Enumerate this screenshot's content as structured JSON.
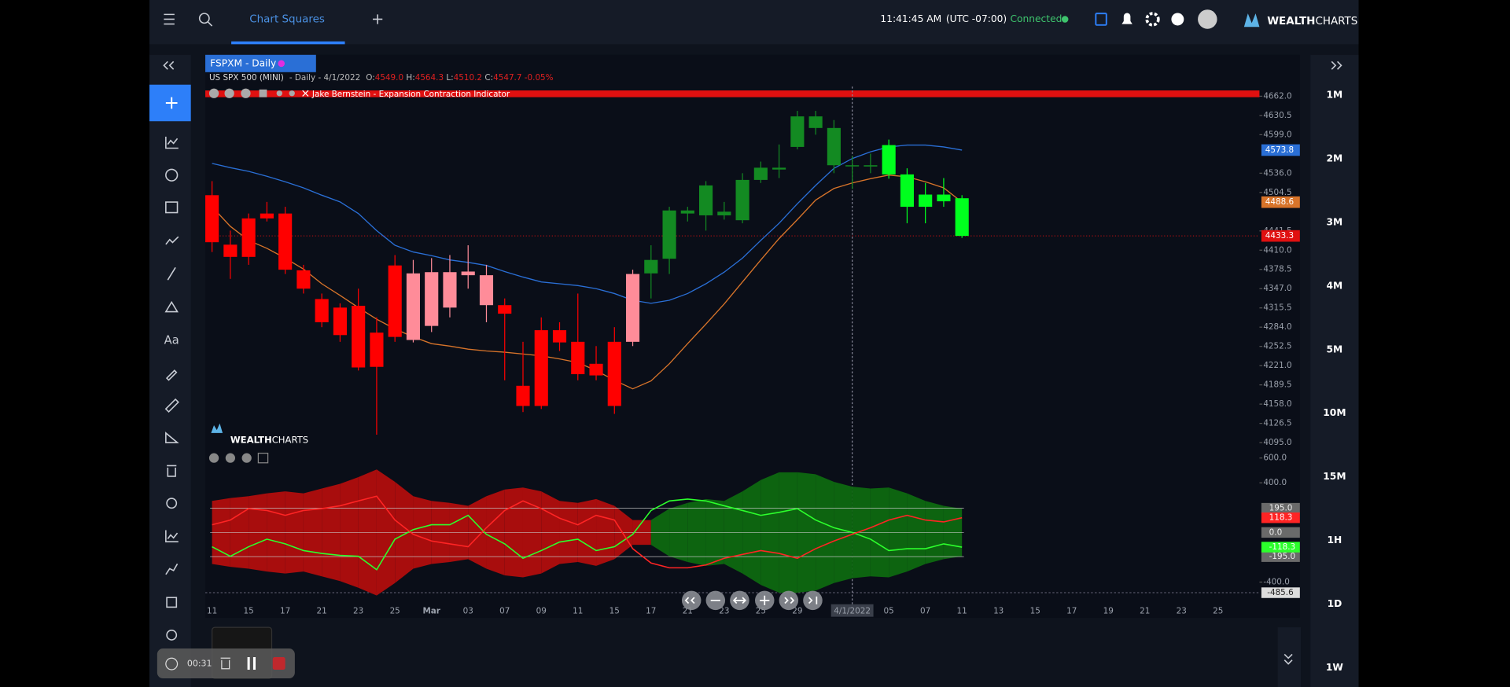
{
  "top_bar": {
    "tab": "Chart Squares",
    "time": "11:41:45 AM",
    "timezone": "(UTC -07:00)",
    "status": "Connected",
    "logo_bold": "WEALTH",
    "logo_light": "CHARTS"
  },
  "timeframes": [
    "1M",
    "2M",
    "3M",
    "4M",
    "5M",
    "10M",
    "15M",
    "1H",
    "1D",
    "1W"
  ],
  "left_toolbar": {
    "text_tool": "Aa"
  },
  "recorder": {
    "time": "00:31"
  },
  "chart_data": [
    {
      "type": "candlestick",
      "title": "FSPXM - Daily",
      "legend": {
        "symbol": "US SPX 500 (MINI)",
        "interval": "- Daily -",
        "date": "4/1/2022",
        "open_label": "O:",
        "open": "4549.0",
        "high_label": "H:",
        "high": "4564.3",
        "low_label": "L:",
        "low": "4510.2",
        "close_label": "C:",
        "close": "4547.7",
        "change": "-0.05%"
      },
      "indicator": "Jake Bernstein - Expansion Contraction Indicator",
      "categories": [
        "11",
        null,
        "15",
        null,
        "17",
        null,
        "21",
        null,
        "23",
        null,
        "25",
        null,
        "Mar",
        null,
        "03",
        null,
        "07",
        null,
        "09",
        null,
        "11",
        null,
        "15",
        null,
        "17",
        null,
        "21",
        null,
        "23",
        null,
        "25",
        null,
        "29",
        null,
        null,
        "4/1/2022",
        null,
        "05",
        null,
        "07",
        null,
        "11",
        null,
        "13",
        null,
        "15",
        null,
        "17",
        null,
        "19",
        null,
        "21",
        null,
        "23",
        null,
        "25"
      ],
      "open": [
        4500,
        4419,
        4462,
        4470,
        4470,
        4377,
        4330,
        4316,
        4319,
        4275,
        4385,
        4263,
        4286,
        4316,
        4369,
        4320,
        4320,
        4188,
        4279,
        4279,
        4260,
        4224,
        4260,
        4260,
        4372,
        4396,
        4470,
        4467,
        4467,
        4459,
        4525,
        4542,
        4579,
        4610,
        4549,
        4549.0,
        4549,
        4582,
        4534,
        4481,
        4501,
        4495,
        null,
        null,
        null,
        null,
        null,
        null,
        null,
        null,
        null,
        null,
        null,
        null,
        null,
        null
      ],
      "high": [
        4523,
        4442,
        4470,
        4489,
        4481,
        4386,
        4339,
        4323,
        4347,
        4300,
        4402,
        4394,
        4397,
        4402,
        4418,
        4386,
        4331,
        4260,
        4300,
        4292,
        4339,
        4253,
        4284,
        4378,
        4418,
        4481,
        4481,
        4523,
        4489,
        4536,
        4555,
        4583,
        4638,
        4638,
        4623,
        4564.3,
        4568,
        4591,
        4544,
        4520,
        4528,
        4500,
        null,
        null,
        null,
        null,
        null,
        null,
        null,
        null,
        null,
        null,
        null,
        null,
        null,
        null
      ],
      "low": [
        4407,
        4363,
        4386,
        4457,
        4371,
        4339,
        4284,
        4260,
        4213,
        4108,
        4260,
        4259,
        4276,
        4300,
        4347,
        4292,
        4197,
        4145,
        4150,
        4245,
        4197,
        4197,
        4142,
        4253,
        4331,
        4371,
        4457,
        4442,
        4460,
        4454,
        4520,
        4528,
        4575,
        4599,
        4536,
        4510.2,
        4536,
        4527,
        4454,
        4454,
        4481,
        4430,
        null,
        null,
        null,
        null,
        null,
        null,
        null,
        null,
        null,
        null,
        null,
        null,
        null,
        null
      ],
      "close": [
        4423,
        4399,
        4399,
        4462,
        4378,
        4347,
        4292,
        4271,
        4218,
        4219,
        4268,
        4372,
        4374,
        4374,
        4375,
        4369,
        4306,
        4155,
        4155,
        4259,
        4207,
        4205,
        4155,
        4371,
        4394,
        4475,
        4475,
        4516,
        4473,
        4525,
        4545,
        4545,
        4629,
        4629,
        4610,
        4547.7,
        4547,
        4534,
        4481,
        4501,
        4490,
        4433.3,
        null,
        null,
        null,
        null,
        null,
        null,
        null,
        null,
        null,
        null,
        null,
        null,
        null,
        null
      ],
      "candle_colors": [
        "#ff0000",
        "#ff0000",
        "#ff0000",
        "#ff0000",
        "#ff0000",
        "#ff0000",
        "#ff0000",
        "#ff0000",
        "#ff0000",
        "#ff0000",
        "#ff0000",
        "#ff8c99",
        "#ff8c99",
        "#ff8c99",
        "#ff8c99",
        "#ff8c99",
        "#ff0000",
        "#ff0000",
        "#ff0000",
        "#ff0000",
        "#ff0000",
        "#ff0000",
        "#ff0000",
        "#ff8c99",
        "#138a22",
        "#138a22",
        "#138a22",
        "#138a22",
        "#138a22",
        "#138a22",
        "#138a22",
        "#138a22",
        "#138a22",
        "#138a22",
        "#138a22",
        "#138a22",
        "#138a22",
        "#00ff1e",
        "#00ff1e",
        "#00ff1e",
        "#00ff1e",
        "#00ff1e",
        null,
        null,
        null,
        null,
        null,
        null,
        null,
        null,
        null,
        null,
        null,
        null,
        null,
        null
      ],
      "moving_averages": [
        {
          "color": "#2a6fd6",
          "values": [
            4552,
            4545,
            4539,
            4531,
            4522,
            4512,
            4500,
            4489,
            4470,
            4442,
            4418,
            4407,
            4401,
            4394,
            4390,
            4385,
            4375,
            4366,
            4358,
            4355,
            4352,
            4347,
            4339,
            4328,
            4323,
            4328,
            4339,
            4355,
            4374,
            4397,
            4426,
            4454,
            4486,
            4516,
            4544,
            4560,
            4571,
            4579,
            4582,
            4582,
            4579,
            4573.8,
            null,
            null,
            null,
            null,
            null,
            null,
            null,
            null,
            null,
            null,
            null,
            null,
            null,
            null
          ]
        },
        {
          "color": "#d8742a",
          "values": [
            4481,
            4449,
            4426,
            4413,
            4397,
            4379,
            4355,
            4336,
            4316,
            4297,
            4281,
            4268,
            4257,
            4253,
            4248,
            4245,
            4243,
            4240,
            4237,
            4232,
            4226,
            4213,
            4197,
            4183,
            4196,
            4224,
            4257,
            4289,
            4322,
            4358,
            4394,
            4429,
            4460,
            4492,
            4511,
            4520,
            4527,
            4533,
            4530,
            4522,
            4512,
            4488.6,
            null,
            null,
            null,
            null,
            null,
            null,
            null,
            null,
            null,
            null,
            null,
            null,
            null,
            null
          ]
        }
      ],
      "last_price_color": "#e01010",
      "ylim": [
        4095,
        4662
      ],
      "yticks": [
        {
          "value": 4662,
          "label": "4662.0"
        },
        4630.5,
        {
          "value": 4599,
          "label": "4599.0"
        },
        {
          "value": 4536,
          "label": "4536.0"
        },
        4504.5,
        4441.5,
        {
          "value": 4410,
          "label": "4410.0"
        },
        4378.5,
        {
          "value": 4347,
          "label": "4347.0"
        },
        4315.5,
        {
          "value": 4284,
          "label": "4284.0"
        },
        4252.5,
        {
          "value": 4221,
          "label": "4221.0"
        },
        4189.5,
        {
          "value": 4158,
          "label": "4158.0"
        },
        4126.5,
        {
          "value": 4095,
          "label": "4095.0"
        }
      ],
      "grid": false
    },
    {
      "type": "band-line",
      "watermark_bold": "WEALTH",
      "watermark_light": "CHARTS",
      "ylim": [
        -485.6,
        600
      ],
      "yticks": [
        {
          "value": 600,
          "label": "600.0"
        },
        {
          "value": 400,
          "label": "400.0"
        },
        {
          "value": -400,
          "label": "-400.0"
        }
      ],
      "levels": [
        {
          "value": 195,
          "label": "195.0"
        },
        {
          "value": 0,
          "label": "0.0"
        },
        {
          "value": -195,
          "label": "-195.0"
        }
      ],
      "band": {
        "values": [
          254,
          277,
          292,
          315,
          331,
          315,
          354,
          392,
          446,
          508,
          408,
          292,
          254,
          238,
          215,
          292,
          346,
          362,
          331,
          254,
          238,
          269,
          215,
          100,
          100,
          192,
          238,
          269,
          254,
          331,
          423,
          485,
          485,
          469,
          408,
          369,
          354,
          362,
          315,
          254,
          215,
          192
        ],
        "colors": [
          "#a80d0d",
          "#a80d0d",
          "#a80d0d",
          "#a80d0d",
          "#a80d0d",
          "#a80d0d",
          "#a80d0d",
          "#a80d0d",
          "#a80d0d",
          "#a80d0d",
          "#a80d0d",
          "#a80d0d",
          "#a80d0d",
          "#a80d0d",
          "#a80d0d",
          "#a80d0d",
          "#a80d0d",
          "#a80d0d",
          "#a80d0d",
          "#a80d0d",
          "#a80d0d",
          "#a80d0d",
          "#a80d0d",
          "#a80d0d",
          "#0d6410",
          "#0d6410",
          "#0d6410",
          "#0d6410",
          "#0d6410",
          "#0d6410",
          "#0d6410",
          "#0d6410",
          "#0d6410",
          "#0d6410",
          "#0d6410",
          "#0d6410",
          "#0d6410",
          "#0d6410",
          "#0d6410",
          "#0d6410",
          "#0d6410",
          "#0d6410"
        ]
      },
      "series": [
        {
          "color": "#2cff2c",
          "values": [
            -115,
            -192,
            -115,
            -54,
            -92,
            -146,
            -169,
            -185,
            -192,
            -300,
            -54,
            23,
            62,
            62,
            138,
            -15,
            -92,
            -208,
            -146,
            -77,
            -54,
            -146,
            -115,
            -15,
            177,
            254,
            269,
            254,
            215,
            177,
            138,
            162,
            192,
            100,
            38,
            0,
            -54,
            -146,
            -131,
            -131,
            -92,
            -118.3
          ]
        },
        {
          "color": "#ff2424",
          "values": [
            62,
            100,
            192,
            177,
            138,
            177,
            192,
            215,
            254,
            292,
            100,
            -15,
            -69,
            -92,
            -115,
            38,
            177,
            254,
            192,
            115,
            62,
            138,
            100,
            -131,
            -246,
            -285,
            -285,
            -262,
            -208,
            -177,
            -146,
            -169,
            -208,
            -131,
            -69,
            -15,
            38,
            100,
            138,
            100,
            85,
            118.3
          ]
        }
      ]
    }
  ]
}
